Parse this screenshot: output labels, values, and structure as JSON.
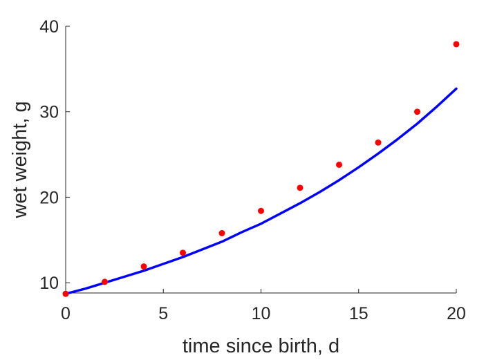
{
  "chart_data": {
    "type": "scatter",
    "title": "",
    "xlabel": "time since birth, d",
    "ylabel": "wet weight, g",
    "xlim": [
      0,
      20
    ],
    "ylim": [
      8.8,
      40
    ],
    "xticks": [
      0,
      5,
      10,
      15,
      20
    ],
    "yticks": [
      10,
      20,
      30,
      40
    ],
    "grid": false,
    "legend": "none",
    "box": "off",
    "series": [
      {
        "kind": "points",
        "color": "#ff0000",
        "x": [
          0,
          2,
          4,
          6,
          8,
          10,
          12,
          14,
          16,
          18,
          20
        ],
        "y": [
          8.7,
          10.1,
          11.9,
          13.5,
          15.8,
          18.4,
          21.1,
          23.8,
          26.4,
          30.0,
          37.9
        ]
      },
      {
        "kind": "line",
        "color": "#0000ff",
        "x": [
          0,
          1,
          2,
          3,
          4,
          5,
          6,
          7,
          8,
          9,
          10,
          11,
          12,
          13,
          14,
          15,
          16,
          17,
          18,
          19,
          20
        ],
        "y": [
          8.7,
          9.3,
          10.0,
          10.7,
          11.4,
          12.2,
          13.0,
          13.9,
          14.8,
          15.9,
          16.9,
          18.1,
          19.3,
          20.6,
          22.0,
          23.5,
          25.1,
          26.8,
          28.6,
          30.6,
          32.7
        ]
      }
    ]
  }
}
